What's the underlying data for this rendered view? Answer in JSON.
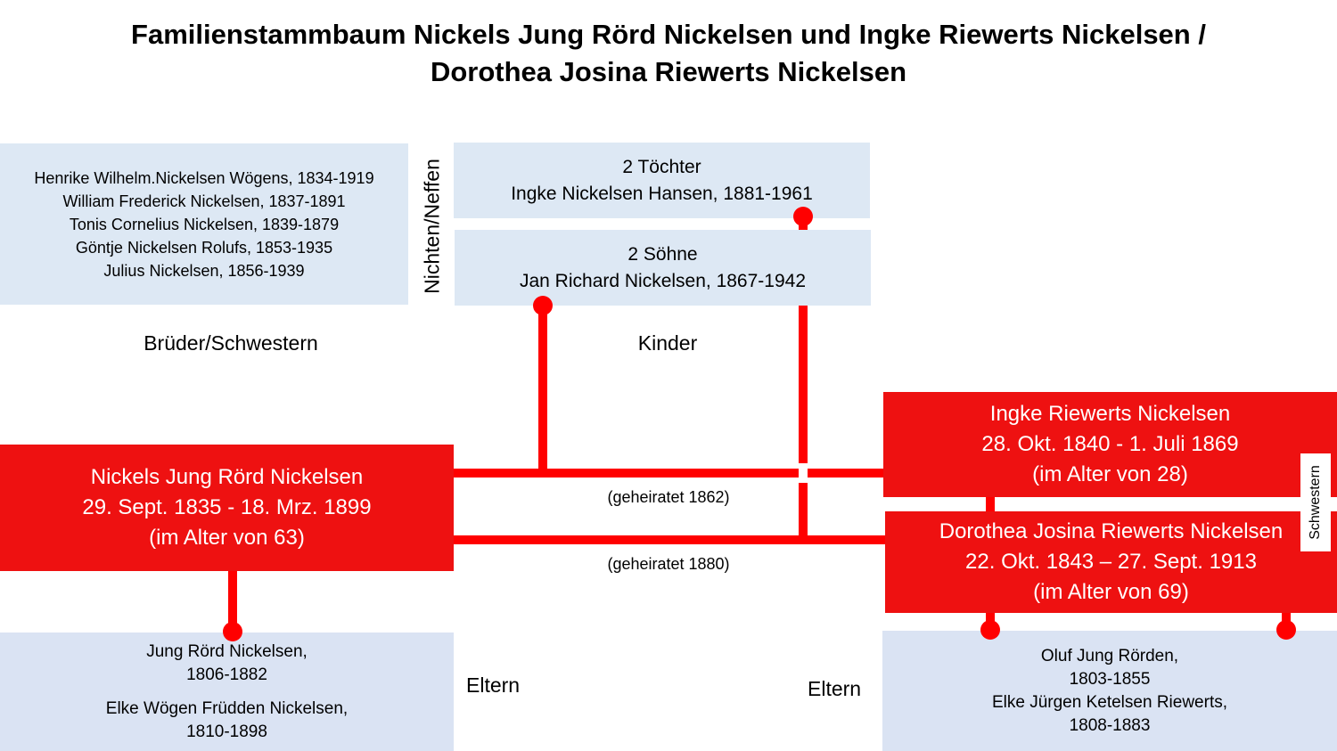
{
  "title": {
    "line1": "Familienstammbaum Nickels Jung Rörd Nickelsen und Ingke Riewerts Nickelsen /",
    "line2": "Dorothea Josina Riewerts Nickelsen"
  },
  "siblings": {
    "items": [
      "Henrike Wilhelm.Nickelsen Wögens, 1834-1919",
      "William Frederick Nickelsen, 1837-1891",
      "Tonis Cornelius Nickelsen, 1839-1879",
      "Göntje Nickelsen Rolufs, 1853-1935",
      "Julius Nickelsen, 1856-1939"
    ],
    "label": "Brüder/Schwestern"
  },
  "nieces_label": "Nichten/Neffen",
  "daughters": {
    "line1": "2 Töchter",
    "line2": "Ingke Nickelsen Hansen, 1881-1961"
  },
  "sons": {
    "line1": "2 Söhne",
    "line2": "Jan Richard Nickelsen, 1867-1942"
  },
  "children_label": "Kinder",
  "nickels": {
    "name": "Nickels Jung Rörd Nickelsen",
    "dates": "29. Sept. 1835 - 18. Mrz. 1899",
    "age": "(im Alter von 63)"
  },
  "ingke": {
    "name": "Ingke Riewerts Nickelsen",
    "dates": "28. Okt. 1840 - 1. Juli 1869",
    "age": "(im Alter von 28)"
  },
  "dorothea": {
    "name": "Dorothea Josina Riewerts Nickelsen",
    "dates": "22. Okt. 1843 – 27. Sept. 1913",
    "age": "(im Alter von 69)"
  },
  "sisters_label": "Schwestern",
  "marriage1": "(geheiratet 1862)",
  "marriage2": "(geheiratet 1880)",
  "parents_left": {
    "father": "Jung Rörd Nickelsen,",
    "father_years": "1806-1882",
    "mother": "Elke Wögen Früdden Nickelsen,",
    "mother_years": "1810-1898"
  },
  "parents_right": {
    "father": "Oluf Jung Rörden,",
    "father_years": "1803-1855",
    "mother": "Elke Jürgen Ketelsen Riewerts,",
    "mother_years": "1808-1883"
  },
  "parents_label_left": "Eltern",
  "parents_label_right": "Eltern",
  "colors": {
    "accent": "#ee1111",
    "line": "#ff0000",
    "box": "#dde8f4"
  }
}
